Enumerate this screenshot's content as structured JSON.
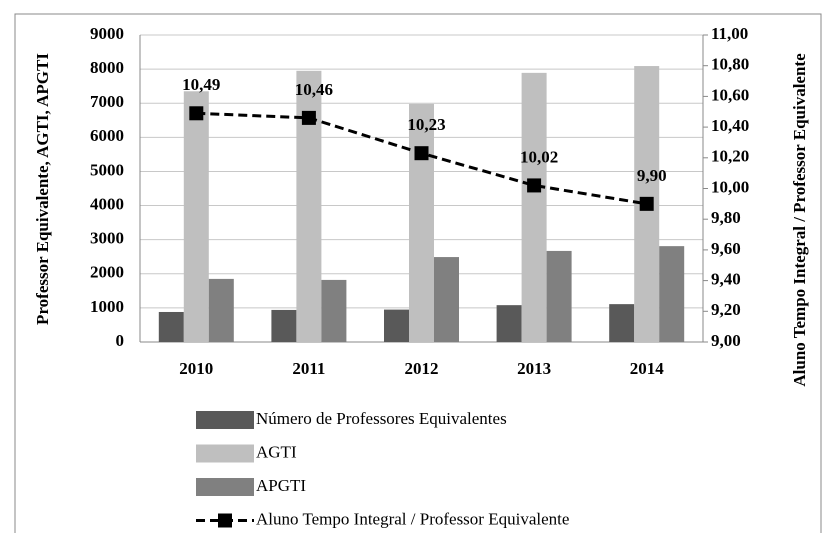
{
  "chart_data": {
    "type": "bar",
    "ylabel": "Professor Equivalente, AGTI, APGTI",
    "y2label": "Aluno Tempo Integral / Professor Equivalente",
    "categories": [
      "2010",
      "2011",
      "2012",
      "2013",
      "2014"
    ],
    "series": [
      {
        "name": "Número de Professores Equivalentes",
        "color": "#595959",
        "values": [
          880,
          940,
          950,
          1080,
          1110
        ]
      },
      {
        "name": "AGTI",
        "color": "#bfbfbf",
        "values": [
          7350,
          7950,
          6980,
          7890,
          8090
        ]
      },
      {
        "name": "APGTI",
        "color": "#808080",
        "values": [
          1850,
          1820,
          2490,
          2670,
          2810
        ]
      },
      {
        "name": "Aluno Tempo Integral / Professor Equivalente",
        "color": "#000000",
        "type": "line",
        "axis": "y2",
        "values": [
          10.49,
          10.46,
          10.23,
          10.02,
          9.9
        ],
        "value_labels": [
          "10,49",
          "10,46",
          "10,23",
          "10,02",
          "9,90"
        ]
      }
    ],
    "ylim": [
      0,
      9000
    ],
    "yticks": [
      0,
      1000,
      2000,
      3000,
      4000,
      5000,
      6000,
      7000,
      8000,
      9000
    ],
    "y2lim": [
      9,
      11
    ],
    "y2ticks": [
      {
        "value": 9,
        "label": "9,00"
      },
      {
        "value": 9.2,
        "label": "9,20"
      },
      {
        "value": 9.4,
        "label": "9,40"
      },
      {
        "value": 9.6,
        "label": "9,60"
      },
      {
        "value": 9.8,
        "label": "9,80"
      },
      {
        "value": 10,
        "label": "10,00"
      },
      {
        "value": 10.2,
        "label": "10,20"
      },
      {
        "value": 10.4,
        "label": "10,40"
      },
      {
        "value": 10.6,
        "label": "10,60"
      },
      {
        "value": 10.8,
        "label": "10,80"
      },
      {
        "value": 11,
        "label": "11,00"
      }
    ],
    "grid": true,
    "legend": "bottom"
  }
}
